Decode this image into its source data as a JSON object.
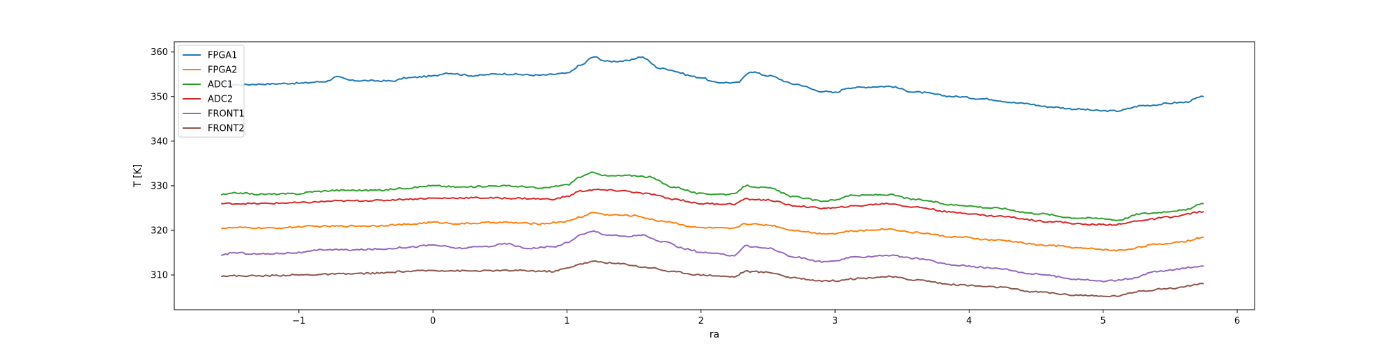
{
  "chart_data": {
    "type": "line",
    "title": "",
    "xlabel": "ra",
    "ylabel": "T [K]",
    "xlim": [
      -1.93,
      6.13
    ],
    "ylim": [
      302.2,
      362.3
    ],
    "xticks": [
      -1,
      0,
      1,
      2,
      3,
      4,
      5,
      6
    ],
    "yticks": [
      310,
      320,
      330,
      340,
      350,
      360
    ],
    "grid": false,
    "legend": "top-left",
    "series": [
      {
        "name": "FPGA1",
        "color": "#1f77b4",
        "x": [
          -1.58,
          -1.45,
          -1.3,
          -1.0,
          -0.8,
          -0.72,
          -0.6,
          -0.3,
          -0.2,
          0.0,
          0.1,
          0.3,
          0.5,
          0.8,
          1.0,
          1.1,
          1.2,
          1.3,
          1.45,
          1.55,
          1.7,
          2.0,
          2.1,
          2.27,
          2.37,
          2.5,
          2.7,
          2.9,
          3.0,
          3.1,
          3.4,
          3.6,
          3.9,
          4.1,
          4.4,
          4.6,
          4.8,
          5.0,
          5.1,
          5.3,
          5.6,
          5.75
        ],
        "y": [
          353.0,
          352.6,
          352.8,
          353.0,
          353.4,
          354.4,
          353.6,
          353.5,
          354.2,
          354.6,
          355.3,
          354.7,
          355.1,
          354.8,
          355.2,
          357.0,
          358.9,
          357.9,
          358.0,
          358.9,
          356.3,
          354.3,
          353.2,
          353.1,
          355.6,
          354.7,
          352.8,
          351.2,
          350.9,
          352.0,
          352.3,
          351.0,
          350.0,
          349.5,
          348.5,
          347.7,
          347.2,
          346.8,
          346.8,
          348.0,
          348.7,
          350.0
        ]
      },
      {
        "name": "FPGA2",
        "color": "#ff7f0e",
        "x": [
          -1.58,
          -1.45,
          -1.2,
          -0.9,
          -0.5,
          -0.2,
          0.0,
          0.2,
          0.5,
          0.8,
          1.0,
          1.1,
          1.2,
          1.3,
          1.5,
          1.7,
          2.0,
          2.25,
          2.32,
          2.5,
          2.7,
          2.9,
          3.0,
          3.1,
          3.4,
          3.6,
          3.9,
          4.2,
          4.6,
          4.9,
          5.1,
          5.4,
          5.6,
          5.75
        ],
        "y": [
          320.5,
          320.6,
          320.5,
          320.9,
          321.0,
          321.3,
          321.8,
          321.5,
          321.8,
          321.5,
          322.0,
          323.0,
          324.0,
          323.5,
          323.3,
          322.1,
          320.6,
          320.4,
          321.5,
          321.2,
          320.0,
          319.3,
          319.3,
          319.8,
          320.3,
          319.5,
          318.5,
          317.8,
          316.6,
          315.9,
          315.5,
          316.8,
          317.5,
          318.5
        ]
      },
      {
        "name": "ADC1",
        "color": "#2ca02c",
        "x": [
          -1.58,
          -1.45,
          -1.3,
          -1.0,
          -0.9,
          -0.7,
          -0.4,
          -0.2,
          0.0,
          0.2,
          0.5,
          0.7,
          0.8,
          1.0,
          1.1,
          1.2,
          1.3,
          1.5,
          1.6,
          1.8,
          2.0,
          2.25,
          2.33,
          2.5,
          2.7,
          2.9,
          3.0,
          3.1,
          3.4,
          3.6,
          3.9,
          4.2,
          4.5,
          4.8,
          5.0,
          5.1,
          5.3,
          5.6,
          5.75
        ],
        "y": [
          328.0,
          328.4,
          328.1,
          328.2,
          328.7,
          329.0,
          329.0,
          329.5,
          330.0,
          329.7,
          330.0,
          329.8,
          329.4,
          330.2,
          332.0,
          333.0,
          332.2,
          332.3,
          332.0,
          329.7,
          328.2,
          328.1,
          330.0,
          329.5,
          327.5,
          326.6,
          326.8,
          327.8,
          328.0,
          326.9,
          325.7,
          325.0,
          323.8,
          322.8,
          322.7,
          322.3,
          323.8,
          324.5,
          326.0
        ]
      },
      {
        "name": "ADC2",
        "color": "#d62728",
        "x": [
          -1.58,
          -1.3,
          -1.0,
          -0.7,
          -0.4,
          -0.2,
          0.0,
          0.3,
          0.6,
          0.9,
          1.0,
          1.1,
          1.2,
          1.4,
          1.6,
          1.8,
          2.0,
          2.25,
          2.33,
          2.5,
          2.7,
          2.9,
          3.0,
          3.1,
          3.4,
          3.6,
          3.9,
          4.2,
          4.6,
          4.9,
          5.1,
          5.3,
          5.5,
          5.75
        ],
        "y": [
          326.0,
          326.0,
          326.2,
          326.6,
          326.7,
          327.0,
          327.2,
          327.3,
          327.2,
          327.0,
          327.6,
          328.8,
          329.1,
          328.9,
          328.2,
          327.0,
          326.0,
          325.9,
          327.0,
          326.8,
          325.5,
          325.0,
          325.0,
          325.4,
          326.0,
          325.2,
          324.0,
          323.2,
          322.0,
          321.3,
          321.3,
          322.3,
          323.0,
          324.2
        ]
      },
      {
        "name": "FRONT1",
        "color": "#9467bd",
        "x": [
          -1.58,
          -1.5,
          -1.3,
          -1.0,
          -0.8,
          -0.6,
          -0.4,
          -0.2,
          0.0,
          0.2,
          0.4,
          0.55,
          0.7,
          0.9,
          1.0,
          1.1,
          1.2,
          1.3,
          1.45,
          1.55,
          1.7,
          1.9,
          2.0,
          2.25,
          2.33,
          2.5,
          2.7,
          2.9,
          3.0,
          3.1,
          3.4,
          3.6,
          3.9,
          4.2,
          4.5,
          4.8,
          5.0,
          5.2,
          5.4,
          5.75
        ],
        "y": [
          314.3,
          315.0,
          314.7,
          315.0,
          315.7,
          315.6,
          315.8,
          316.2,
          316.7,
          316.0,
          316.4,
          317.0,
          316.0,
          316.3,
          317.2,
          319.0,
          319.8,
          319.0,
          318.6,
          319.0,
          317.5,
          315.8,
          315.0,
          314.4,
          316.5,
          316.0,
          314.0,
          313.0,
          313.0,
          313.9,
          314.4,
          313.7,
          312.2,
          311.5,
          310.2,
          309.1,
          308.6,
          309.1,
          310.8,
          312.0
        ]
      },
      {
        "name": "FRONT2",
        "color": "#8c564b",
        "x": [
          -1.58,
          -1.3,
          -1.0,
          -0.7,
          -0.4,
          -0.2,
          0.0,
          0.3,
          0.6,
          0.9,
          1.0,
          1.1,
          1.2,
          1.4,
          1.6,
          1.8,
          2.0,
          2.25,
          2.33,
          2.5,
          2.7,
          2.9,
          3.0,
          3.1,
          3.4,
          3.6,
          3.9,
          4.2,
          4.5,
          4.8,
          5.0,
          5.1,
          5.3,
          5.5,
          5.75
        ],
        "y": [
          309.8,
          309.8,
          310.0,
          310.2,
          310.4,
          310.8,
          311.0,
          310.9,
          311.0,
          310.8,
          311.5,
          312.5,
          313.0,
          312.5,
          311.7,
          310.7,
          310.0,
          309.6,
          310.8,
          310.6,
          309.3,
          308.7,
          308.7,
          309.1,
          309.6,
          308.9,
          307.8,
          307.3,
          306.2,
          305.5,
          305.2,
          305.3,
          306.5,
          307.0,
          308.0
        ]
      }
    ]
  }
}
